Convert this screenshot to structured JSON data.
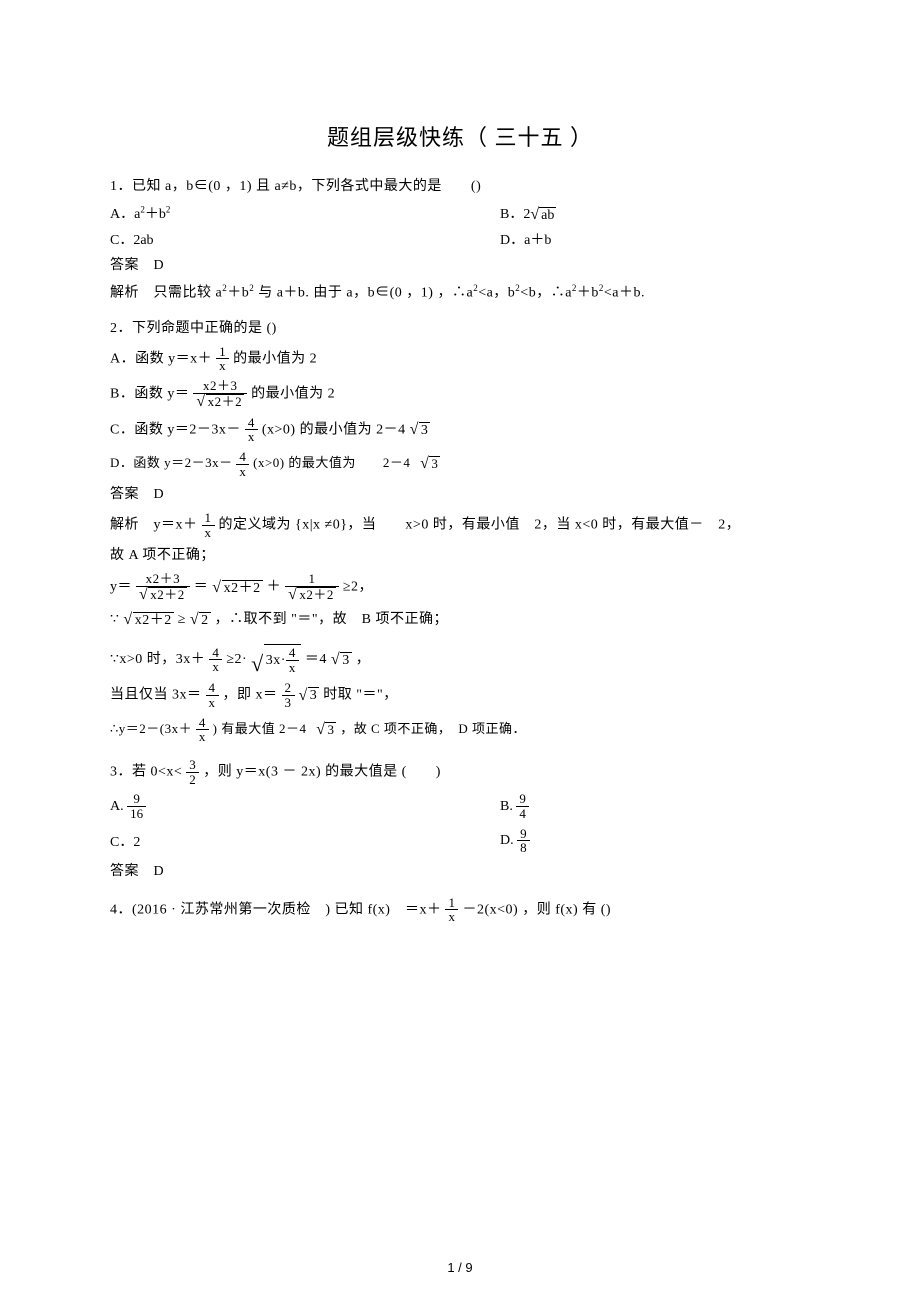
{
  "title": "题组层级快练（ 三十五 ）",
  "q1": {
    "stem": "1．已知 a，b∈(0 ，1) 且 a≠b，下列各式中最大的是　　()",
    "optA_label": "A．a",
    "optA_tail": "＋b",
    "optB_pre": "B．2",
    "optB_body": "ab",
    "optC": "C．2ab",
    "optD": "D．a＋b",
    "ans": "答案　D",
    "sol_pre": "解析　只需比较 a",
    "sol_mid1": "＋b",
    "sol_mid2": " 与 a＋b. 由于 a，b∈(0 ，1) ，∴a",
    "sol_mid3": "<a，b",
    "sol_mid4": "<b，∴a",
    "sol_mid5": "＋b",
    "sol_tail": "<a＋b."
  },
  "q2": {
    "stem": "2．下列命题中正确的是  ()",
    "A_pre": "A．函数 y＝x＋",
    "A_frac_num": "1",
    "A_frac_den": "x",
    "A_tail": " 的最小值为 2",
    "B_pre": "B．函数 y＝",
    "B_num": "x2＋3",
    "B_den_body": "x2＋2",
    "B_tail": "的最小值为 2",
    "C_pre": "C．函数 y＝2－3x－",
    "C_frac_num": "4",
    "C_frac_den": "x",
    "C_mid": "(x>0) 的最小值为 2－4",
    "C_sqrt": "3",
    "D_pre": "D．函数 y＝2－3x－",
    "D_frac_num": "4",
    "D_frac_den": "x",
    "D_mid": "(x>0) 的最大值为　　2－4",
    "D_sqrt": "3",
    "ans": "答案　D",
    "sol1_pre": "解析　y＝x＋",
    "sol1_num": "1",
    "sol1_den": "x",
    "sol1_tail": "的定义域为 {x|x ≠0}，当　　x>0 时，有最小值　2，当 x<0 时，有最大值－　2，",
    "sol1_b": "故 A 项不正确；",
    "sol2_pre": "y＝",
    "sol2_num1": "x2＋3",
    "sol2_den1": "x2＋2",
    "sol2_eq": "＝",
    "sol2_sqrt1": "x2＋2",
    "sol2_plus": "＋",
    "sol2_num2": "1",
    "sol2_den2": "x2＋2",
    "sol2_tail": " ≥2，",
    "sol3_pre": "∵",
    "sol3_s1": "x2＋2",
    "sol3_ge": "≥",
    "sol3_s2": "2",
    "sol3_tail": "，∴取不到 \"＝\"，故　B 项不正确；",
    "sol4_pre": "∵x>0 时，3x＋",
    "sol4_num": "4",
    "sol4_den": "x",
    "sol4_mid": "≥2·",
    "sol4_sqrt_inner_pre": "3x·",
    "sol4_in_num": "4",
    "sol4_in_den": "x",
    "sol4_eq": "＝4",
    "sol4_s3": "3",
    "sol4_tail": "，",
    "sol5_pre": "当且仅当 3x＝",
    "sol5_num": "4",
    "sol5_den": "x",
    "sol5_mid": "，即 x＝",
    "sol5_num2": "2",
    "sol5_den2": "3",
    "sol5_s": "3",
    "sol5_tail": "时取 \"＝\"，",
    "sol6_pre": "∴y＝2－(3x＋",
    "sol6_num": "4",
    "sol6_den": "x",
    "sol6_mid": ") 有最大值 2－4",
    "sol6_s": "3",
    "sol6_tail": "，故 C 项不正确，　D 项正确．"
  },
  "q3": {
    "stem_pre": "3．若 0<x<",
    "stem_num": "3",
    "stem_den": "2",
    "stem_tail": "，则 y＝x(3 － 2x) 的最大值是 (　　)",
    "A_pre": "A.",
    "A_num": "9",
    "A_den": "16",
    "B_pre": "B.",
    "B_num": "9",
    "B_den": "4",
    "C": "C．2",
    "D_pre": "D.",
    "D_num": "9",
    "D_den": "8",
    "ans": "答案　D"
  },
  "q4": {
    "pre": "4．(2016 · 江苏常州第一次质检　) 已知 f(x)　＝x＋",
    "num": "1",
    "den": "x",
    "tail": "－2(x<0) ，则 f(x) 有 ()"
  },
  "pagenum": "1 / 9"
}
